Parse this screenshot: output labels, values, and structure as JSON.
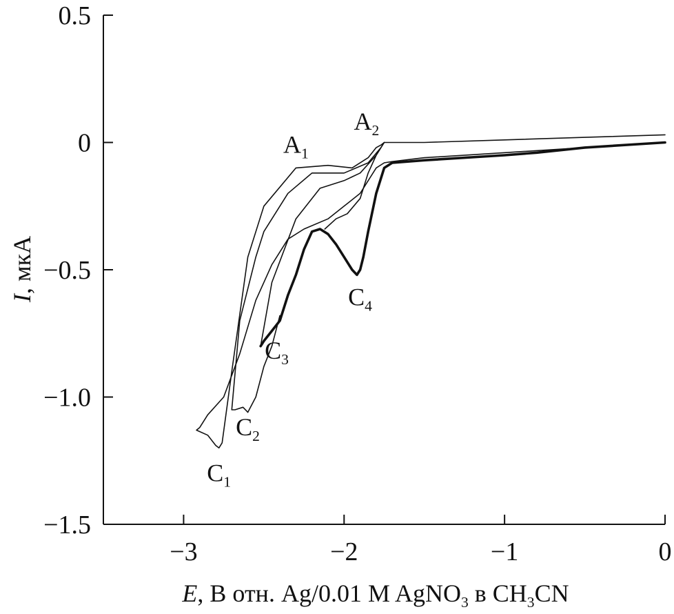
{
  "chart_data": {
    "type": "line",
    "title": "",
    "xlabel": {
      "italic": "E",
      "rest_before_sub1": ", В  отн. Ag/0.01 M AgNO",
      "sub1": "3",
      "between": " в CH",
      "sub2": "3",
      "after": "CN"
    },
    "ylabel": {
      "italic": "I",
      "rest": ", мкА"
    },
    "xlim": [
      -3.5,
      0
    ],
    "ylim": [
      -1.5,
      0.5
    ],
    "xticks": [
      -3,
      -2,
      -1,
      0
    ],
    "yticks": [
      0.5,
      0,
      -0.5,
      -1.0,
      -1.5
    ],
    "xtick_labels": [
      "−3",
      "−2",
      "−1",
      "0"
    ],
    "ytick_labels": [
      "0.5",
      "0",
      "−0.5",
      "−1.0",
      "−1.5"
    ],
    "grid": false,
    "series": [
      {
        "stroke": "thin",
        "x": [
          0.0,
          -0.5,
          -1.0,
          -1.5,
          -1.7,
          -1.75,
          -1.8,
          -1.9,
          -2.0,
          -2.1,
          -2.25,
          -2.35,
          -2.45,
          -2.55,
          -2.65,
          -2.75,
          -2.85,
          -2.9,
          -2.92,
          -2.85,
          -2.8,
          -2.78,
          -2.76,
          -2.7,
          -2.6,
          -2.5,
          -2.3,
          -2.1,
          -1.95,
          -1.85,
          -1.8,
          -1.77,
          -1.75,
          -1.5,
          -1.0,
          -0.5,
          0.0
        ],
        "y": [
          0.0,
          -0.02,
          -0.04,
          -0.06,
          -0.075,
          -0.08,
          -0.1,
          -0.2,
          -0.25,
          -0.3,
          -0.34,
          -0.38,
          -0.48,
          -0.62,
          -0.83,
          -1.0,
          -1.07,
          -1.12,
          -1.13,
          -1.15,
          -1.19,
          -1.2,
          -1.18,
          -0.9,
          -0.45,
          -0.25,
          -0.1,
          -0.09,
          -0.1,
          -0.06,
          -0.02,
          -0.01,
          0.0,
          0.0,
          0.01,
          0.02,
          0.03
        ]
      },
      {
        "stroke": "thin",
        "x": [
          -2.12,
          -2.05,
          -1.98,
          -1.9,
          -1.85,
          -1.8,
          -1.77,
          -1.75,
          -1.77,
          -1.85,
          -2.0,
          -2.2,
          -2.35,
          -2.5,
          -2.55,
          -2.65,
          -2.7,
          -2.68,
          -2.63,
          -2.6
        ],
        "y": [
          -0.34,
          -0.3,
          -0.28,
          -0.22,
          -0.12,
          -0.05,
          -0.02,
          0.0,
          -0.02,
          -0.08,
          -0.12,
          -0.12,
          -0.2,
          -0.35,
          -0.45,
          -0.7,
          -1.05,
          -1.05,
          -1.04,
          -1.06
        ]
      },
      {
        "stroke": "thin",
        "x": [
          -2.6,
          -2.55,
          -2.5,
          -2.45,
          -2.4
        ],
        "y": [
          -1.06,
          -1.0,
          -0.88,
          -0.8,
          -0.68
        ]
      },
      {
        "stroke": "thin",
        "x": [
          -1.75,
          -1.8,
          -1.9,
          -2.0,
          -2.15,
          -2.3,
          -2.45,
          -2.52,
          -2.5
        ],
        "y": [
          0.0,
          -0.05,
          -0.12,
          -0.15,
          -0.18,
          -0.3,
          -0.55,
          -0.8,
          -0.78
        ]
      },
      {
        "stroke": "thick",
        "x": [
          0.0,
          -0.5,
          -0.8,
          -1.0,
          -1.5,
          -1.7,
          -1.75,
          -1.8,
          -1.85,
          -1.88,
          -1.9,
          -1.92,
          -1.95,
          -2.0,
          -2.05,
          -2.1,
          -2.15,
          -2.2,
          -2.25,
          -2.3,
          -2.35,
          -2.4,
          -2.45,
          -2.5,
          -2.52
        ],
        "y": [
          0.0,
          -0.02,
          -0.04,
          -0.05,
          -0.07,
          -0.08,
          -0.1,
          -0.2,
          -0.35,
          -0.45,
          -0.5,
          -0.52,
          -0.5,
          -0.45,
          -0.4,
          -0.36,
          -0.34,
          -0.35,
          -0.42,
          -0.52,
          -0.6,
          -0.7,
          -0.74,
          -0.78,
          -0.8
        ]
      }
    ],
    "annotations": [
      {
        "label": "A",
        "sub": "1",
        "x": -2.3,
        "y": -0.04
      },
      {
        "label": "A",
        "sub": "2",
        "x": -1.86,
        "y": 0.05
      },
      {
        "label": "C",
        "sub": "1",
        "x": -2.78,
        "y": -1.33
      },
      {
        "label": "C",
        "sub": "2",
        "x": -2.6,
        "y": -1.15
      },
      {
        "label": "C",
        "sub": "3",
        "x": -2.42,
        "y": -0.85
      },
      {
        "label": "C",
        "sub": "4",
        "x": -1.9,
        "y": -0.64
      }
    ],
    "colors": {
      "line": "#111111",
      "axis": "#111111",
      "background": "#ffffff"
    }
  }
}
